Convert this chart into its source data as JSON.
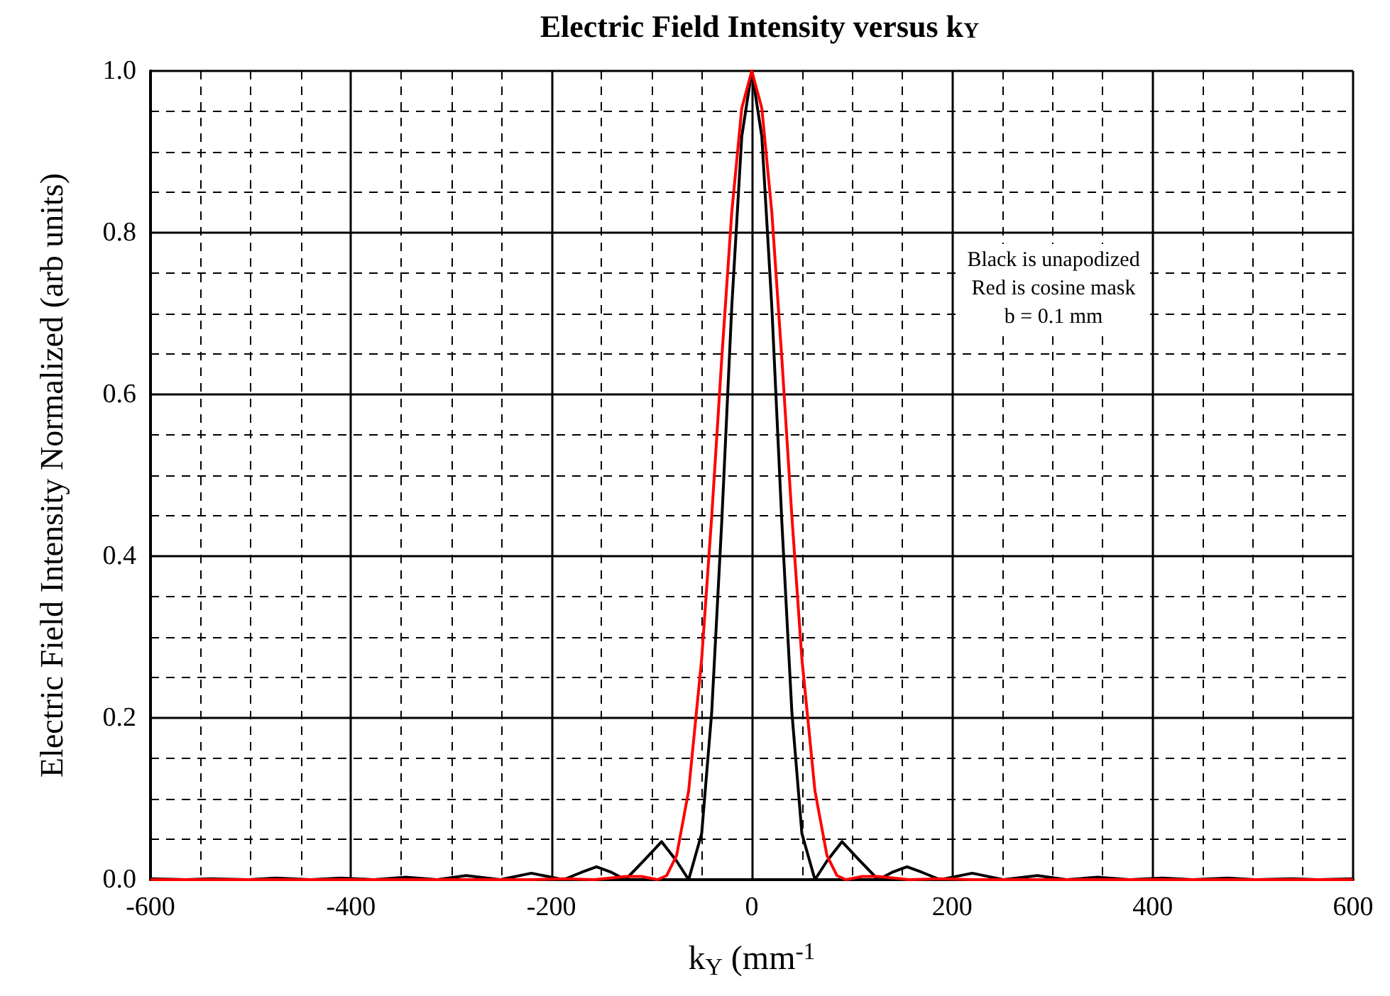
{
  "chart_data": {
    "type": "line",
    "title": "Electric Field Intensity versus k$_{Y}$",
    "xlabel": "k$_{Y}$ (mm$^{-1}$",
    "ylabel": "Electric Field Intensity Normalized (arb units)",
    "annotations": [
      "Black is unapodized",
      "Red is cosine mask",
      "b = 0.1 mm"
    ],
    "series": [
      {
        "color": "#000000",
        "x": [
          -600,
          -565,
          -540,
          -502,
          -475,
          -440,
          -410,
          -377,
          -345,
          -314,
          -285,
          -251,
          -220,
          -188,
          -170,
          -155,
          -140,
          -126,
          -105,
          -90,
          -75,
          -63,
          -50,
          -40,
          -30,
          -20,
          -10,
          0,
          10,
          20,
          30,
          40,
          50,
          63,
          75,
          90,
          105,
          126,
          140,
          155,
          170,
          188,
          220,
          251,
          285,
          314,
          345,
          377,
          410,
          440,
          475,
          502,
          540,
          565,
          600
        ],
        "values": [
          0.001,
          0,
          0.001,
          0,
          0.002,
          0,
          0.002,
          0,
          0.003,
          0,
          0.005,
          0,
          0.008,
          0,
          0.009,
          0.016,
          0.009,
          0,
          0.027,
          0.047,
          0.023,
          0,
          0.057,
          0.207,
          0.442,
          0.708,
          0.919,
          1.0,
          0.919,
          0.708,
          0.442,
          0.207,
          0.057,
          0,
          0.023,
          0.047,
          0.027,
          0,
          0.009,
          0.016,
          0.009,
          0,
          0.008,
          0,
          0.005,
          0,
          0.003,
          0,
          0.002,
          0,
          0.002,
          0,
          0.001,
          0,
          0.001
        ]
      },
      {
        "color": "#ff0000",
        "x": [
          -600,
          -220,
          -188,
          -157,
          -126,
          -110,
          -94,
          -85,
          -75,
          -63,
          -50,
          -40,
          -30,
          -20,
          -10,
          0,
          10,
          20,
          30,
          40,
          50,
          63,
          75,
          85,
          94,
          110,
          126,
          157,
          188,
          220,
          600
        ],
        "values": [
          0,
          0,
          0.001,
          0,
          0.004,
          0.004,
          0,
          0.005,
          0.03,
          0.11,
          0.273,
          0.449,
          0.644,
          0.825,
          0.954,
          1.0,
          0.954,
          0.825,
          0.644,
          0.449,
          0.273,
          0.11,
          0.03,
          0.005,
          0,
          0.004,
          0.004,
          0,
          0.001,
          0,
          0
        ]
      }
    ],
    "xlim": [
      -600,
      600
    ],
    "xticks": [
      -600,
      -400,
      -200,
      0,
      200,
      400,
      600
    ],
    "ylim": [
      0,
      1
    ],
    "yticks": [
      {
        "value": 0,
        "label": "0.0"
      },
      {
        "value": 0.2,
        "label": "0.2"
      },
      {
        "value": 0.4,
        "label": "0.4"
      },
      {
        "value": 0.6,
        "label": "0.6"
      },
      {
        "value": 0.8,
        "label": "0.8"
      },
      {
        "value": 1,
        "label": "1.0"
      }
    ],
    "grid": true,
    "marker": "none",
    "line_style": "solid"
  }
}
